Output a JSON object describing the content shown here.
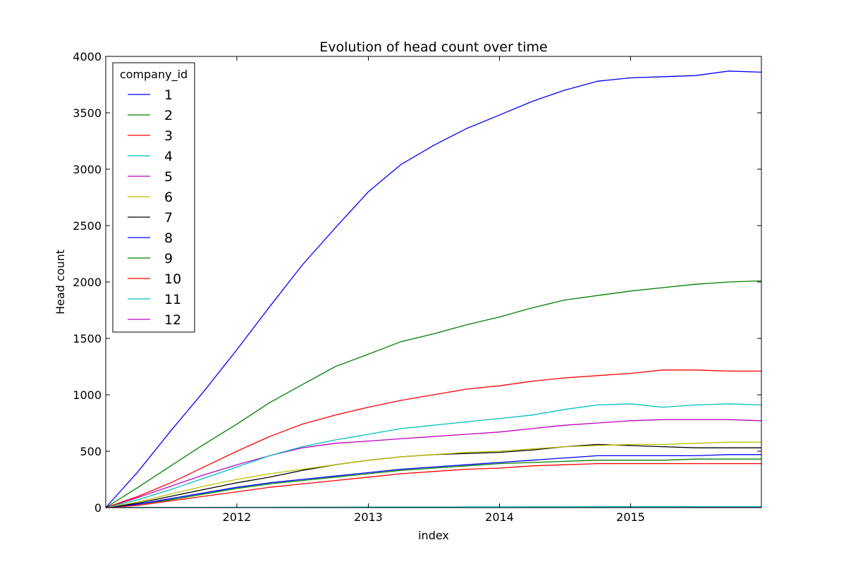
{
  "chart_data": {
    "type": "line",
    "title": "Evolution of head count over time",
    "xlabel": "index",
    "ylabel": "Head count",
    "xlim": [
      "2011-01-01",
      "2015-12-31"
    ],
    "ylim": [
      0,
      4000
    ],
    "x_ticks": [
      "2012",
      "2013",
      "2014",
      "2015"
    ],
    "y_ticks": [
      "0",
      "500",
      "1000",
      "1500",
      "2000",
      "2500",
      "3000",
      "3500",
      "4000"
    ],
    "grid": false,
    "legend": {
      "title": "company_id",
      "placement": "top-left"
    },
    "x": [
      "2011-01-01",
      "2011-04-01",
      "2011-07-01",
      "2011-10-01",
      "2012-01-01",
      "2012-04-01",
      "2012-07-01",
      "2012-10-01",
      "2013-01-01",
      "2013-04-01",
      "2013-07-01",
      "2013-10-01",
      "2014-01-01",
      "2014-04-01",
      "2014-07-01",
      "2014-10-01",
      "2015-01-01",
      "2015-04-01",
      "2015-07-01",
      "2015-10-01",
      "2015-12-31"
    ],
    "series": [
      {
        "name": "1",
        "color": "#0000ff",
        "values": [
          0,
          320,
          680,
          1030,
          1400,
          1780,
          2150,
          2480,
          2800,
          3040,
          3210,
          3360,
          3480,
          3600,
          3700,
          3780,
          3810,
          3820,
          3830,
          3870,
          3860
        ]
      },
      {
        "name": "2",
        "color": "#008000",
        "values": [
          0,
          180,
          370,
          560,
          740,
          930,
          1090,
          1250,
          1360,
          1470,
          1540,
          1620,
          1690,
          1770,
          1840,
          1880,
          1920,
          1950,
          1980,
          2000,
          2010
        ]
      },
      {
        "name": "3",
        "color": "#ff0000",
        "values": [
          0,
          100,
          220,
          360,
          500,
          630,
          740,
          820,
          890,
          950,
          1000,
          1050,
          1080,
          1120,
          1150,
          1170,
          1190,
          1220,
          1220,
          1210,
          1210
        ]
      },
      {
        "name": "4",
        "color": "#00bfbf",
        "values": [
          0,
          70,
          160,
          260,
          360,
          460,
          540,
          600,
          650,
          700,
          730,
          760,
          790,
          820,
          870,
          910,
          920,
          890,
          910,
          920,
          910
        ]
      },
      {
        "name": "5",
        "color": "#bf00bf",
        "values": [
          0,
          90,
          190,
          290,
          380,
          460,
          530,
          570,
          590,
          610,
          630,
          650,
          670,
          700,
          730,
          750,
          770,
          780,
          780,
          780,
          770
        ]
      },
      {
        "name": "6",
        "color": "#bfbf00",
        "values": [
          0,
          50,
          120,
          190,
          250,
          300,
          340,
          380,
          420,
          450,
          470,
          490,
          500,
          520,
          540,
          550,
          560,
          560,
          570,
          580,
          580
        ]
      },
      {
        "name": "7",
        "color": "#000000",
        "values": [
          0,
          40,
          100,
          160,
          220,
          270,
          330,
          380,
          420,
          450,
          470,
          480,
          490,
          510,
          540,
          560,
          550,
          540,
          530,
          530,
          530
        ]
      },
      {
        "name": "8",
        "color": "#0000ff",
        "values": [
          0,
          30,
          80,
          130,
          180,
          220,
          250,
          280,
          310,
          340,
          360,
          380,
          400,
          420,
          440,
          460,
          460,
          460,
          460,
          470,
          470
        ]
      },
      {
        "name": "9",
        "color": "#008000",
        "values": [
          0,
          30,
          70,
          120,
          170,
          210,
          240,
          270,
          300,
          330,
          350,
          370,
          390,
          400,
          410,
          420,
          420,
          420,
          430,
          430,
          430
        ]
      },
      {
        "name": "10",
        "color": "#ff0000",
        "values": [
          0,
          20,
          60,
          100,
          140,
          180,
          210,
          240,
          270,
          300,
          320,
          340,
          350,
          370,
          380,
          390,
          390,
          390,
          390,
          390,
          390
        ]
      },
      {
        "name": "11",
        "color": "#00bfbf",
        "values": [
          0,
          1,
          2,
          2,
          3,
          3,
          4,
          4,
          5,
          5,
          5,
          6,
          6,
          7,
          7,
          8,
          8,
          8,
          9,
          9,
          9
        ]
      },
      {
        "name": "12",
        "color": "#bf00bf",
        "values": [
          0,
          1,
          1,
          2,
          2,
          2,
          3,
          3,
          3,
          3,
          4,
          4,
          4,
          4,
          5,
          5,
          5,
          5,
          5,
          5,
          5
        ]
      }
    ]
  }
}
